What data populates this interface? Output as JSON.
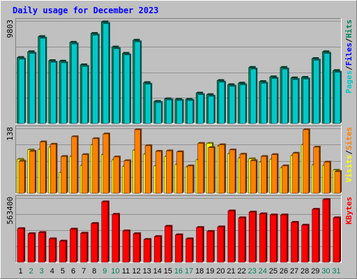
{
  "chart_data": {
    "type": "bar",
    "title": "Daily usage for December 2023",
    "categories": [
      "1",
      "2",
      "3",
      "4",
      "5",
      "6",
      "7",
      "8",
      "9",
      "10",
      "11",
      "12",
      "13",
      "14",
      "15",
      "16",
      "17",
      "18",
      "19",
      "20",
      "21",
      "22",
      "23",
      "24",
      "25",
      "26",
      "27",
      "28",
      "29",
      "30",
      "31"
    ],
    "weekend_days": [
      "2",
      "3",
      "9",
      "10",
      "16",
      "17",
      "23",
      "24",
      "30",
      "31"
    ],
    "colors": {
      "title": "#0000ff",
      "hits": "#00805c",
      "files": "#0000ff",
      "pages": "#00c8c8",
      "visits": "#ffff00",
      "sites": "#ff8000",
      "kbytes": "#ff0000",
      "day_normal": "#000000",
      "day_weekend": "#00805c",
      "panel": "#c0c0c0",
      "background": "#c0c0c0"
    },
    "panels": [
      {
        "name": "hits-files-pages",
        "scale_label": "9803",
        "ylim": [
          0,
          9803
        ],
        "legend": [
          {
            "text": "Hits",
            "color": "#00805c"
          },
          {
            "text": "Files",
            "color": "#0000ff"
          },
          {
            "text": "Pages",
            "color": "#00c8c8"
          }
        ],
        "series": [
          {
            "name": "Hits",
            "values": [
              6300,
              6850,
              8300,
              6000,
              5950,
              7750,
              5600,
              8600,
              9700,
              7300,
              6700,
              7950,
              3900,
              2100,
              2350,
              2300,
              2300,
              2900,
              2750,
              4100,
              3700,
              3850,
              5350,
              4000,
              4450,
              5350,
              4350,
              4400,
              6200,
              6850,
              5050
            ]
          },
          {
            "name": "Pages",
            "values": [
              6150,
              6700,
              8150,
              5850,
              5800,
              7600,
              5450,
              8450,
              9550,
              7150,
              6550,
              7800,
              3750,
              2000,
              2250,
              2200,
              2200,
              2750,
              2600,
              3950,
              3550,
              3700,
              5200,
              3850,
              4300,
              5200,
              4200,
              4250,
              6050,
              6700,
              4900
            ]
          }
        ]
      },
      {
        "name": "visits-sites",
        "scale_label": "138",
        "ylim": [
          0,
          138
        ],
        "legend": [
          {
            "text": "Sites",
            "color": "#ff8000"
          },
          {
            "text": "Visits",
            "color": "#ffff00"
          }
        ],
        "series": [
          {
            "name": "Visits",
            "values": [
              72,
              92,
              93,
              98,
              44,
              78,
              59,
              103,
              82,
              71,
              57,
              91,
              83,
              58,
              78,
              61,
              56,
              71,
              106,
              100,
              84,
              75,
              73,
              66,
              72,
              54,
              80,
              103,
              60,
              59,
              49
            ]
          },
          {
            "name": "Sites",
            "values": [
              68,
              89,
              109,
              104,
              78,
              120,
              82,
              116,
              126,
              77,
              69,
              135,
              101,
              89,
              90,
              88,
              58,
              106,
              97,
              103,
              92,
              83,
              69,
              78,
              82,
              58,
              85,
              135,
              98,
              66,
              46
            ]
          }
        ]
      },
      {
        "name": "kbytes",
        "scale_label": "563400",
        "ylim": [
          0,
          563400
        ],
        "legend": [
          {
            "text": "KBytes",
            "color": "#ff0000"
          }
        ],
        "series": [
          {
            "name": "KBytes",
            "values": [
              295000,
              250000,
              260000,
              205000,
              185000,
              290000,
              255000,
              340000,
              530000,
              420000,
              275000,
              250000,
              200000,
              225000,
              315000,
              240000,
              205000,
              305000,
              270000,
              310000,
              450000,
              390000,
              440000,
              425000,
              415000,
              415000,
              350000,
              325000,
              465000,
              550000,
              390000
            ]
          }
        ]
      }
    ]
  }
}
